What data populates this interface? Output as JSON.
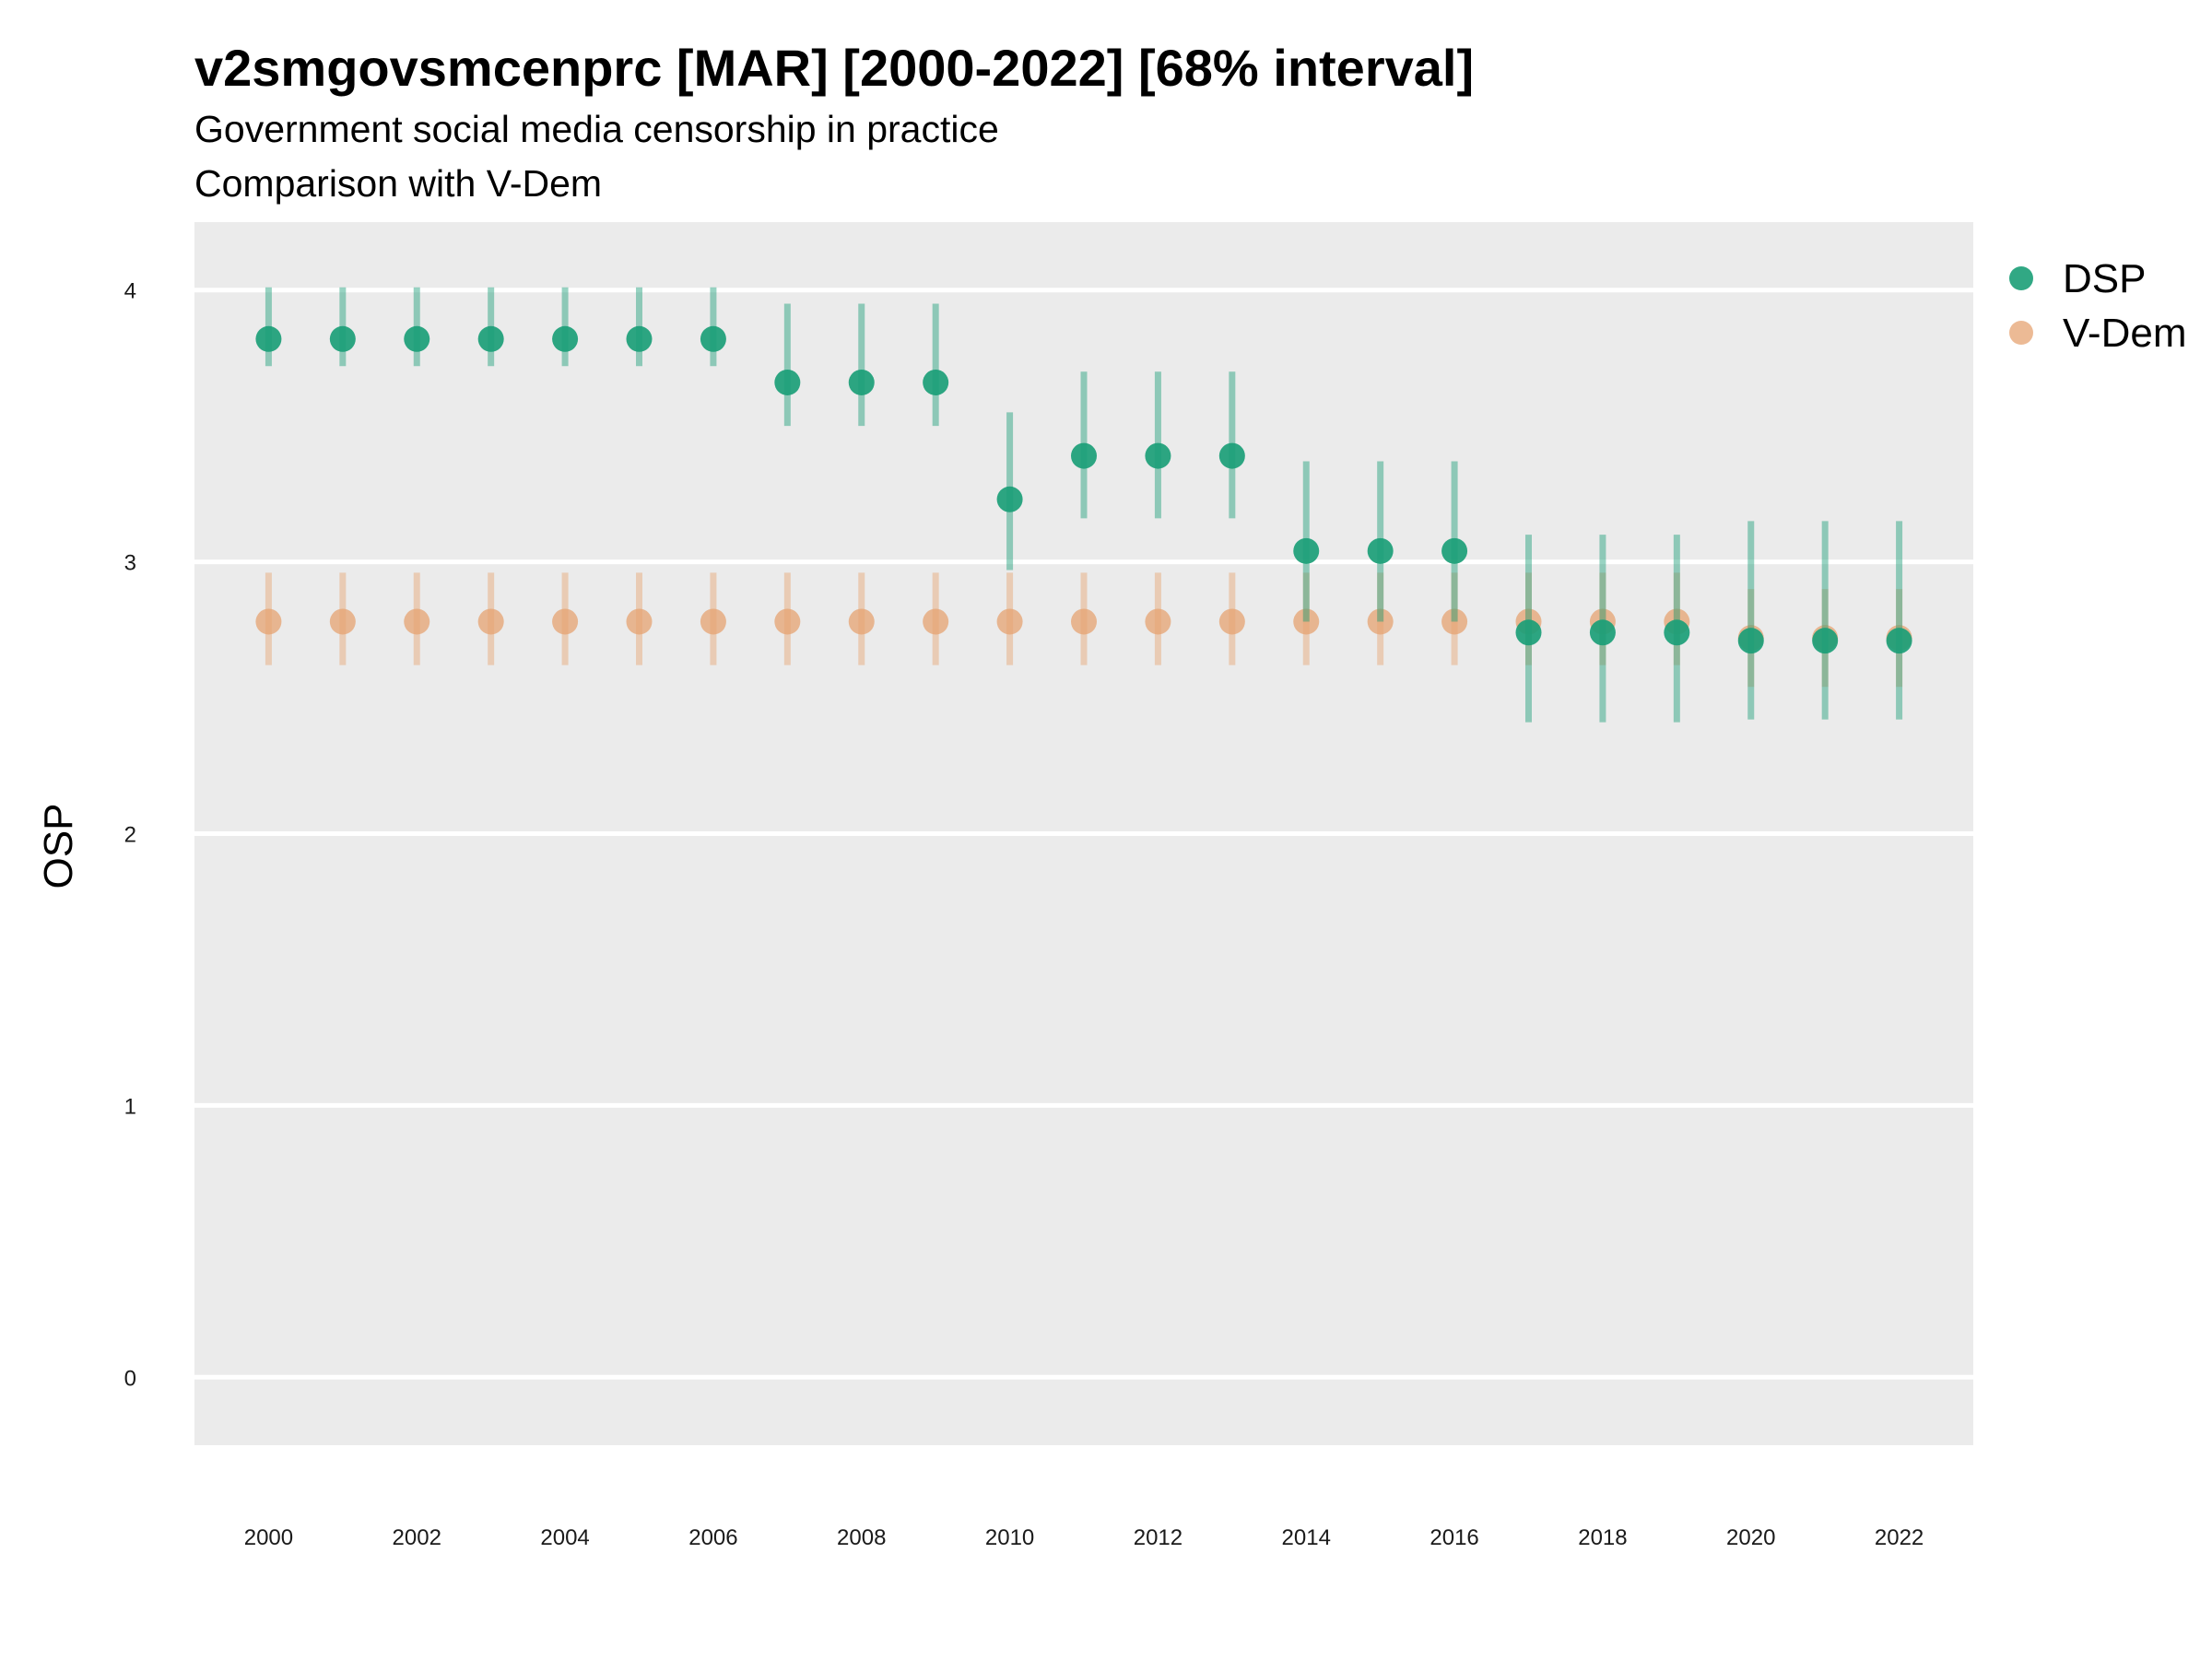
{
  "chart_data": {
    "type": "scatter",
    "title": "v2smgovsmcenprc [MAR] [2000-2022] [68% interval]",
    "subtitle": [
      "Government social media censorship in practice",
      "Comparison with V-Dem"
    ],
    "xlabel": "",
    "ylabel": "OSP",
    "ylim": [
      -0.25,
      4.25
    ],
    "xlim": [
      1999.0,
      2023.0
    ],
    "yticks": [
      0,
      1,
      2,
      3,
      4
    ],
    "xticks": [
      2000,
      2002,
      2004,
      2006,
      2008,
      2010,
      2012,
      2014,
      2016,
      2018,
      2020,
      2022
    ],
    "grid": true,
    "legend_position": "right-top",
    "x": [
      2000,
      2001,
      2002,
      2003,
      2004,
      2005,
      2006,
      2007,
      2008,
      2009,
      2010,
      2011,
      2012,
      2013,
      2014,
      2015,
      2016,
      2017,
      2018,
      2019,
      2020,
      2021,
      2022
    ],
    "series": [
      {
        "name": "V-Dem",
        "color": "#E6A372",
        "values": [
          2.78,
          2.78,
          2.78,
          2.78,
          2.78,
          2.78,
          2.78,
          2.78,
          2.78,
          2.78,
          2.78,
          2.78,
          2.78,
          2.78,
          2.78,
          2.78,
          2.78,
          2.78,
          2.78,
          2.78,
          2.72,
          2.72,
          2.72
        ],
        "lower": [
          2.62,
          2.62,
          2.62,
          2.62,
          2.62,
          2.62,
          2.62,
          2.62,
          2.62,
          2.62,
          2.62,
          2.62,
          2.62,
          2.62,
          2.62,
          2.62,
          2.62,
          2.62,
          2.62,
          2.62,
          2.54,
          2.54,
          2.54
        ],
        "upper": [
          2.96,
          2.96,
          2.96,
          2.96,
          2.96,
          2.96,
          2.96,
          2.96,
          2.96,
          2.96,
          2.96,
          2.96,
          2.96,
          2.96,
          2.96,
          2.96,
          2.96,
          2.96,
          2.96,
          2.96,
          2.9,
          2.9,
          2.9
        ]
      },
      {
        "name": "DSP",
        "color": "#1B9E77",
        "values": [
          3.82,
          3.82,
          3.82,
          3.82,
          3.82,
          3.82,
          3.82,
          3.66,
          3.66,
          3.66,
          3.23,
          3.39,
          3.39,
          3.39,
          3.04,
          3.04,
          3.04,
          2.74,
          2.74,
          2.74,
          2.71,
          2.71,
          2.71
        ],
        "lower": [
          3.72,
          3.72,
          3.72,
          3.72,
          3.72,
          3.72,
          3.72,
          3.5,
          3.5,
          3.5,
          2.97,
          3.16,
          3.16,
          3.16,
          2.78,
          2.78,
          2.78,
          2.41,
          2.41,
          2.41,
          2.42,
          2.42,
          2.42
        ],
        "upper": [
          4.01,
          4.01,
          4.01,
          4.01,
          4.01,
          4.01,
          4.01,
          3.95,
          3.95,
          3.95,
          3.55,
          3.7,
          3.7,
          3.7,
          3.37,
          3.37,
          3.37,
          3.1,
          3.1,
          3.1,
          3.15,
          3.15,
          3.15
        ]
      }
    ]
  }
}
